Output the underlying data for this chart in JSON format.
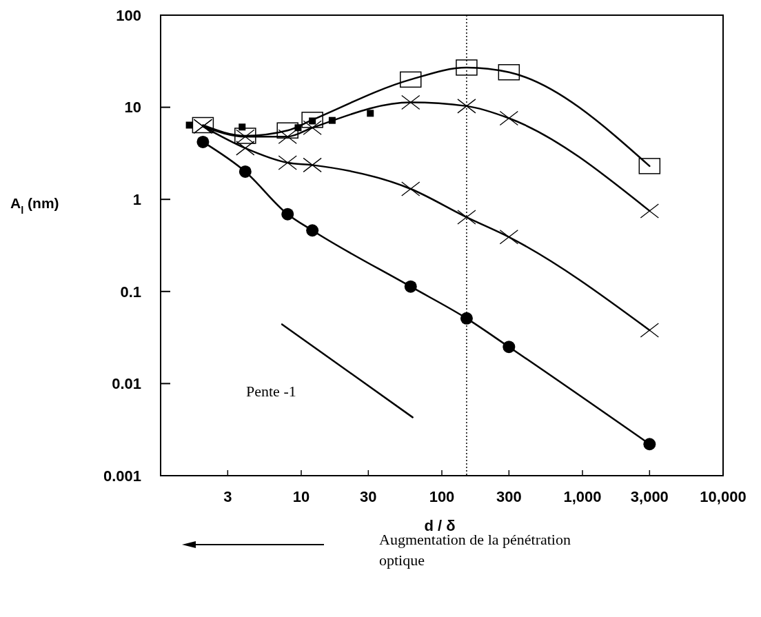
{
  "chart_data": {
    "type": "line",
    "xlabel": "d / δ",
    "ylabel": "A$_{l}$ (nm)",
    "log": "xy",
    "xlim": [
      1,
      10000
    ],
    "ylim": [
      0.001,
      100
    ],
    "xticks": [
      3,
      10,
      30,
      100,
      300,
      {
        "value": 1000,
        "label": "1,000"
      },
      {
        "value": 3000,
        "label": "3,000"
      },
      {
        "value": 10000,
        "label": "10,000"
      }
    ],
    "yticks": [
      0.001,
      0.01,
      0.1,
      1,
      10,
      100
    ],
    "grid": false,
    "line_style": "solid",
    "series": [
      {
        "color": "#000000",
        "marker": "square",
        "x": [
          2,
          4,
          8,
          12,
          60,
          150,
          300,
          3000
        ],
        "values": [
          6.4,
          4.9,
          5.6,
          7.3,
          20,
          27,
          24,
          2.3
        ]
      },
      {
        "color": "#000000",
        "marker": "cross",
        "x": [
          2,
          4,
          8,
          12,
          60,
          150,
          300,
          3000
        ],
        "values": [
          6.2,
          4.8,
          4.8,
          6,
          11.3,
          10.3,
          7.6,
          0.75
        ]
      },
      {
        "type": "scatter",
        "color": "#000000",
        "marker": "square",
        "x": [
          1.6,
          3.8,
          9.5,
          12,
          16.6,
          31
        ],
        "values": [
          6.4,
          6.1,
          6,
          7.1,
          7.2,
          8.6
        ]
      },
      {
        "color": "#000000",
        "marker": "cross",
        "x": [
          2,
          4,
          8,
          12,
          60,
          150,
          300,
          3000
        ],
        "values": [
          6.2,
          3.6,
          2.5,
          2.36,
          1.3,
          0.64,
          0.39,
          0.038
        ]
      },
      {
        "color": "#000000",
        "marker": "circle",
        "x": [
          2,
          4,
          8,
          12,
          60,
          150,
          300,
          3000
        ],
        "values": [
          4.2,
          2,
          0.69,
          0.46,
          0.113,
          0.051,
          0.025,
          0.0022
        ]
      },
      {
        "color": "#000000",
        "marker": "none",
        "x": [
          7.3,
          62
        ],
        "values": [
          0.044,
          0.0043
        ]
      }
    ],
    "ref_lines": [
      {
        "axis": "x",
        "value": 150,
        "line_style": "dotted"
      }
    ],
    "annotations": [
      "Pente -1",
      "Augmentation de la pénétration optique"
    ]
  }
}
